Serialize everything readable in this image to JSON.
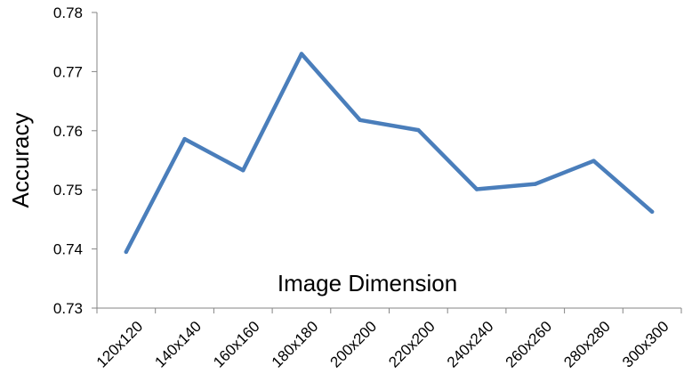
{
  "chart_data": {
    "type": "line",
    "title": "",
    "xlabel": "Image Dimension",
    "ylabel": "Accuracy",
    "categories": [
      "120x120",
      "140x140",
      "160x160",
      "180x180",
      "200x200",
      "220x200",
      "240x240",
      "260x260",
      "280x280",
      "300x300"
    ],
    "series": [
      {
        "values": [
          0.7395,
          0.7586,
          0.7533,
          0.773,
          0.7618,
          0.7601,
          0.7501,
          0.751,
          0.7549,
          0.7463
        ],
        "color": "#4a7ebb"
      }
    ],
    "ylim": [
      0.73,
      0.78
    ],
    "yticks": [
      "0.73",
      "0.74",
      "0.75",
      "0.76",
      "0.77",
      "0.78"
    ],
    "grid": false,
    "legend": "none"
  }
}
